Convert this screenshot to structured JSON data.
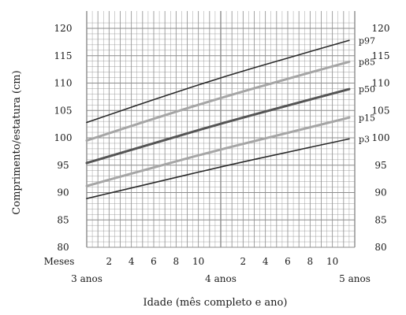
{
  "chart_data": {
    "type": "line",
    "xlabel": "Idade (mês completo e ano)",
    "ylabel": "Comprimento/estatura (cm)",
    "x_range_months": [
      36,
      60
    ],
    "ylim": [
      80,
      120
    ],
    "y_ticks": [
      80,
      85,
      90,
      95,
      100,
      105,
      110,
      115,
      120
    ],
    "x_month_row_label": "Meses",
    "x_month_ticks": [
      {
        "month": 38,
        "label": "2"
      },
      {
        "month": 40,
        "label": "4"
      },
      {
        "month": 42,
        "label": "6"
      },
      {
        "month": 44,
        "label": "8"
      },
      {
        "month": 46,
        "label": "10"
      },
      {
        "month": 50,
        "label": "2"
      },
      {
        "month": 52,
        "label": "4"
      },
      {
        "month": 54,
        "label": "6"
      },
      {
        "month": 56,
        "label": "8"
      },
      {
        "month": 58,
        "label": "10"
      }
    ],
    "x_year_ticks": [
      {
        "month": 36,
        "label": "3 anos"
      },
      {
        "month": 48,
        "label": "4 anos"
      },
      {
        "month": 60,
        "label": "5 anos"
      }
    ],
    "grid": true,
    "colors": {
      "dark": "#2b2b2b",
      "mid": "#555555",
      "light": "#a6a6a6",
      "grid": "#8c8c8c"
    },
    "series": [
      {
        "name": "p97",
        "tone": "dark",
        "width": 1.6,
        "x": [
          36,
          42,
          48,
          54,
          59.5
        ],
        "values": [
          102.8,
          107.0,
          111.0,
          114.6,
          117.8
        ]
      },
      {
        "name": "p85",
        "tone": "light",
        "width": 3,
        "x": [
          36,
          42,
          48,
          54,
          59.5
        ],
        "values": [
          99.5,
          103.5,
          107.3,
          110.8,
          113.9
        ]
      },
      {
        "name": "p50",
        "tone": "mid",
        "width": 3,
        "x": [
          36,
          42,
          48,
          54,
          59.5
        ],
        "values": [
          95.4,
          99.0,
          102.6,
          105.9,
          108.9
        ]
      },
      {
        "name": "p15",
        "tone": "light",
        "width": 3,
        "x": [
          36,
          42,
          48,
          54,
          59.5
        ],
        "values": [
          91.2,
          94.6,
          97.9,
          100.9,
          103.7
        ]
      },
      {
        "name": "p3",
        "tone": "dark",
        "width": 1.6,
        "x": [
          36,
          42,
          48,
          54,
          59.5
        ],
        "values": [
          88.9,
          91.8,
          94.7,
          97.4,
          99.8
        ]
      }
    ]
  }
}
